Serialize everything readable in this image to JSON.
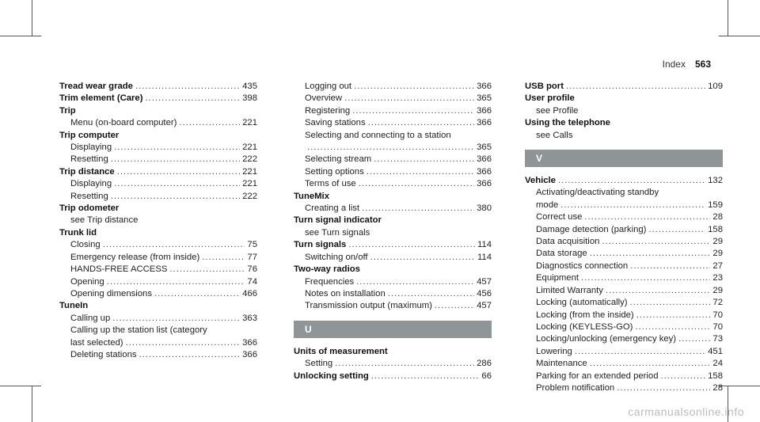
{
  "header": {
    "section": "Index",
    "page": "563"
  },
  "columns": [
    [
      {
        "k": "main",
        "t": "Tread wear grade",
        "p": "435"
      },
      {
        "k": "main",
        "t": "Trim element (Care)",
        "p": "398"
      },
      {
        "k": "main",
        "t": "Trip",
        "p": ""
      },
      {
        "k": "sub",
        "t": "Menu (on-board computer)",
        "p": "221"
      },
      {
        "k": "main",
        "t": "Trip computer",
        "p": ""
      },
      {
        "k": "sub",
        "t": "Displaying",
        "p": "221"
      },
      {
        "k": "sub",
        "t": "Resetting",
        "p": "222"
      },
      {
        "k": "main",
        "t": "Trip distance",
        "p": "221"
      },
      {
        "k": "sub",
        "t": "Displaying",
        "p": "221"
      },
      {
        "k": "sub",
        "t": "Resetting",
        "p": "222"
      },
      {
        "k": "main",
        "t": "Trip odometer",
        "p": ""
      },
      {
        "k": "note",
        "t": "see Trip distance",
        "p": ""
      },
      {
        "k": "main",
        "t": "Trunk lid",
        "p": ""
      },
      {
        "k": "sub",
        "t": "Closing",
        "p": "75"
      },
      {
        "k": "sub",
        "t": "Emergency release (from inside)",
        "p": "77"
      },
      {
        "k": "sub",
        "t": "HANDS-FREE ACCESS",
        "p": "76"
      },
      {
        "k": "sub",
        "t": "Opening",
        "p": "74"
      },
      {
        "k": "sub",
        "t": "Opening dimensions",
        "p": "466"
      },
      {
        "k": "main",
        "t": "TuneIn",
        "p": ""
      },
      {
        "k": "sub",
        "t": "Calling up",
        "p": "363"
      },
      {
        "k": "wrap",
        "t": "Calling up the station list (category",
        "p": ""
      },
      {
        "k": "wrap2",
        "t": "last selected)",
        "p": "366"
      },
      {
        "k": "sub",
        "t": "Deleting stations",
        "p": "366"
      }
    ],
    [
      {
        "k": "sub",
        "t": "Logging out",
        "p": "366"
      },
      {
        "k": "sub",
        "t": "Overview",
        "p": "365"
      },
      {
        "k": "sub",
        "t": "Registering",
        "p": "366"
      },
      {
        "k": "sub",
        "t": "Saving stations",
        "p": "366"
      },
      {
        "k": "wrap",
        "t": "Selecting and connecting to a station",
        "p": ""
      },
      {
        "k": "wrap2",
        "t": "",
        "p": "365"
      },
      {
        "k": "sub",
        "t": "Selecting stream",
        "p": "366"
      },
      {
        "k": "sub",
        "t": "Setting options",
        "p": "366"
      },
      {
        "k": "sub",
        "t": "Terms of use",
        "p": "366"
      },
      {
        "k": "main",
        "t": "TuneMix",
        "p": ""
      },
      {
        "k": "sub",
        "t": "Creating a list",
        "p": "380"
      },
      {
        "k": "main",
        "t": "Turn signal indicator",
        "p": ""
      },
      {
        "k": "note",
        "t": "see Turn signals",
        "p": ""
      },
      {
        "k": "main",
        "t": "Turn signals",
        "p": "114"
      },
      {
        "k": "sub",
        "t": "Switching on/off",
        "p": "114"
      },
      {
        "k": "main",
        "t": "Two-way radios",
        "p": ""
      },
      {
        "k": "sub",
        "t": "Frequencies",
        "p": "457"
      },
      {
        "k": "sub",
        "t": "Notes on installation",
        "p": "456"
      },
      {
        "k": "sub",
        "t": "Transmission output (maximum)",
        "p": "457"
      },
      {
        "k": "letter",
        "t": "U",
        "p": ""
      },
      {
        "k": "main",
        "t": "Units of measurement",
        "p": ""
      },
      {
        "k": "sub",
        "t": "Setting",
        "p": "286"
      },
      {
        "k": "main",
        "t": "Unlocking setting",
        "p": "66"
      }
    ],
    [
      {
        "k": "main",
        "t": "USB port",
        "p": "109"
      },
      {
        "k": "main",
        "t": "User profile",
        "p": ""
      },
      {
        "k": "note",
        "t": "see Profile",
        "p": ""
      },
      {
        "k": "main",
        "t": "Using the telephone",
        "p": ""
      },
      {
        "k": "note",
        "t": "see Calls",
        "p": ""
      },
      {
        "k": "letter",
        "t": "V",
        "p": ""
      },
      {
        "k": "main",
        "t": "Vehicle",
        "p": "132"
      },
      {
        "k": "wrap",
        "t": "Activating/deactivating standby",
        "p": ""
      },
      {
        "k": "wrap2",
        "t": "mode",
        "p": "159"
      },
      {
        "k": "sub",
        "t": "Correct use",
        "p": "28"
      },
      {
        "k": "sub",
        "t": "Damage detection (parking)",
        "p": "158"
      },
      {
        "k": "sub",
        "t": "Data acquisition",
        "p": "29"
      },
      {
        "k": "sub",
        "t": "Data storage",
        "p": "29"
      },
      {
        "k": "sub",
        "t": "Diagnostics connection",
        "p": "27"
      },
      {
        "k": "sub",
        "t": "Equipment",
        "p": "23"
      },
      {
        "k": "sub",
        "t": "Limited Warranty",
        "p": "29"
      },
      {
        "k": "sub",
        "t": "Locking (automatically)",
        "p": "72"
      },
      {
        "k": "sub",
        "t": "Locking (from the inside)",
        "p": "70"
      },
      {
        "k": "sub",
        "t": "Locking (KEYLESS-GO)",
        "p": "70"
      },
      {
        "k": "sub",
        "t": "Locking/unlocking (emergency key)",
        "p": "73"
      },
      {
        "k": "sub",
        "t": "Lowering",
        "p": "451"
      },
      {
        "k": "sub",
        "t": "Maintenance",
        "p": "24"
      },
      {
        "k": "sub",
        "t": "Parking for an extended period",
        "p": "158"
      },
      {
        "k": "sub",
        "t": "Problem notification",
        "p": "28"
      }
    ]
  ],
  "footer": "carmanualsonline.info"
}
